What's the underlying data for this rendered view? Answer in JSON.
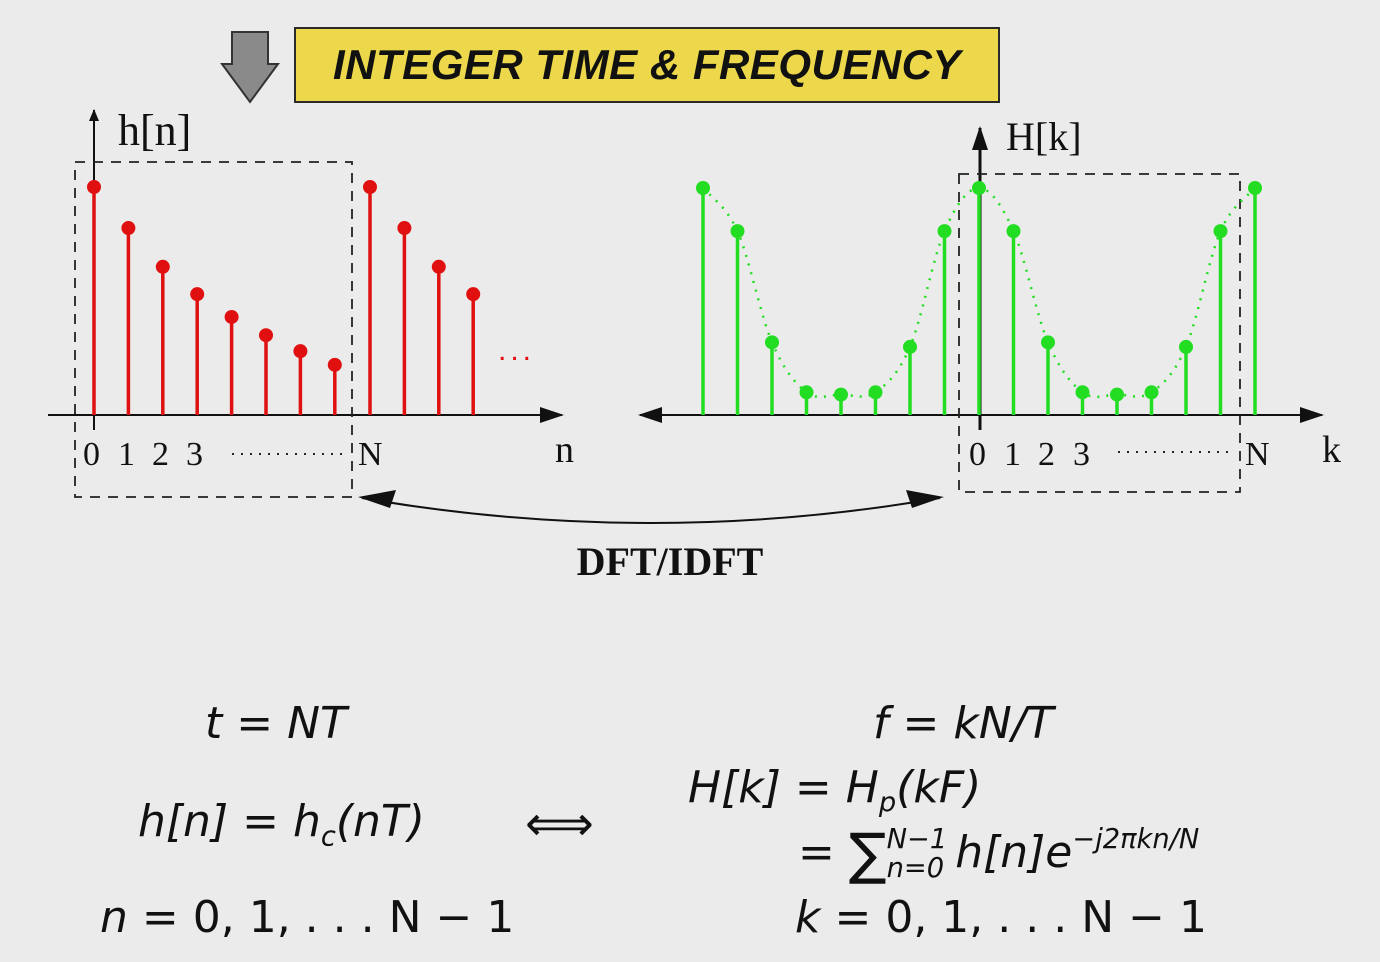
{
  "banner": {
    "title": "INTEGER TIME & FREQUENCY"
  },
  "left_plot": {
    "ylabel": "h[n]",
    "xlabel": "n",
    "ticks": [
      "0",
      "1",
      "2",
      "3",
      "N"
    ],
    "ellipsis": "...",
    "color": "#e01010",
    "samples": [
      1.0,
      0.82,
      0.65,
      0.53,
      0.43,
      0.35,
      0.28,
      0.22
    ],
    "repeat_samples": [
      1.0,
      0.82,
      0.65,
      0.53
    ]
  },
  "right_plot": {
    "ylabel": "H[k]",
    "xlabel": "k",
    "ticks": [
      "0",
      "1",
      "2",
      "3",
      "N"
    ],
    "color": "#22dd22",
    "samples": [
      1.0,
      0.81,
      0.32,
      0.1,
      0.09,
      0.1,
      0.3,
      0.81,
      1.0,
      0.81,
      0.32,
      0.1,
      0.09,
      0.1,
      0.3,
      0.81,
      1.0
    ]
  },
  "transform_label": "DFT/IDFT",
  "equations": {
    "left": [
      {
        "lhs": "t",
        "rhs": "NT"
      },
      {
        "lhs": "h[n]",
        "rhs": "h",
        "rhs_sub": "c",
        "rhs_rest": "(nT)"
      },
      {
        "lhs": "n",
        "rhs": "0, 1, . . . N − 1"
      }
    ],
    "iff": "⟺",
    "right": [
      {
        "lhs": "f",
        "rhs": "kN/T"
      },
      {
        "lhs": "H[k]",
        "rhs": "H",
        "rhs_sub": "p",
        "rhs_rest": "(kF)"
      },
      {
        "sum_upper": "N−1",
        "sum_lower": "n=0",
        "sum_body": "h[n]e",
        "sum_exp": "−j2πkn/N"
      },
      {
        "lhs": "k",
        "rhs": "0, 1, . . . N − 1"
      }
    ]
  }
}
